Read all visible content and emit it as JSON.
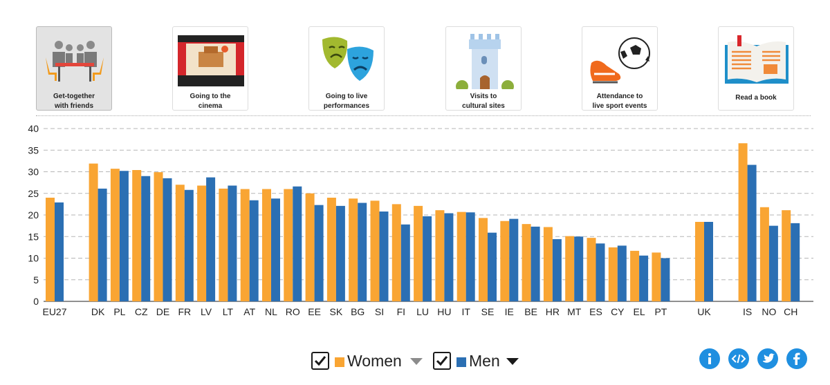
{
  "cards": [
    {
      "label": "Get-together\nwith friends",
      "icon": "friends-table-icon",
      "active": true
    },
    {
      "label": "Going to the\ncinema",
      "icon": "cinema-stage-icon",
      "active": false
    },
    {
      "label": "Going to live\nperformances",
      "icon": "theatre-masks-icon",
      "active": false
    },
    {
      "label": "Visits to\ncultural sites",
      "icon": "castle-tower-icon",
      "active": false
    },
    {
      "label": "Attendance to\nlive sport events",
      "icon": "football-boot-icon",
      "active": false
    },
    {
      "label": "Read a book",
      "icon": "open-book-icon",
      "active": false
    }
  ],
  "chart_data": {
    "type": "bar",
    "categories": [
      "EU27",
      "",
      "DK",
      "PL",
      "CZ",
      "DE",
      "FR",
      "LV",
      "LT",
      "AT",
      "NL",
      "RO",
      "EE",
      "SK",
      "BG",
      "SI",
      "FI",
      "LU",
      "HU",
      "IT",
      "SE",
      "IE",
      "BE",
      "HR",
      "MT",
      "ES",
      "CY",
      "EL",
      "PT",
      "",
      "UK",
      "",
      "IS",
      "NO",
      "CH"
    ],
    "series": [
      {
        "name": "Women",
        "color": "#f9a533",
        "values": [
          24.0,
          null,
          31.9,
          30.7,
          30.4,
          29.9,
          27.0,
          26.8,
          26.1,
          26.0,
          26.0,
          26.0,
          25.0,
          24.0,
          23.8,
          23.3,
          22.5,
          22.1,
          21.1,
          20.7,
          19.3,
          18.6,
          17.9,
          17.2,
          15.1,
          14.7,
          12.5,
          11.7,
          11.3,
          null,
          18.4,
          null,
          36.6,
          21.8,
          21.1
        ]
      },
      {
        "name": "Men",
        "color": "#2b6fb3",
        "values": [
          22.9,
          null,
          26.1,
          30.2,
          29.0,
          28.5,
          25.8,
          28.7,
          26.8,
          23.4,
          23.8,
          26.6,
          22.3,
          22.1,
          22.8,
          20.8,
          17.8,
          19.7,
          20.4,
          20.6,
          15.9,
          19.1,
          17.3,
          14.4,
          15.0,
          13.4,
          12.9,
          10.6,
          10.0,
          null,
          18.4,
          null,
          31.6,
          17.5,
          18.1
        ]
      }
    ],
    "ylim": [
      0,
      40
    ],
    "yticks": [
      0,
      5,
      10,
      15,
      20,
      25,
      30,
      35,
      40
    ],
    "grid": true
  },
  "legend": {
    "women_label": "Women",
    "men_label": "Men"
  },
  "share_icons": [
    "info-icon",
    "embed-code-icon",
    "twitter-icon",
    "facebook-icon"
  ]
}
